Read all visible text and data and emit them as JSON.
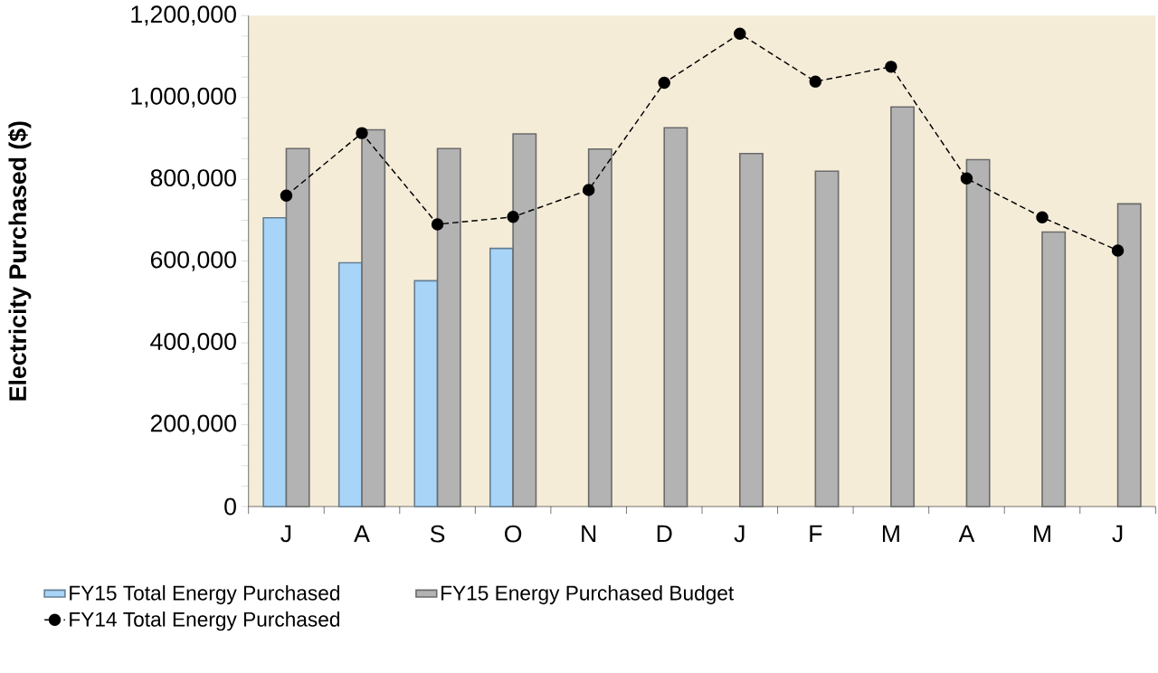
{
  "chart_data": {
    "type": "bar",
    "ylabel": "Electricity Purchased ($)",
    "categories": [
      "J",
      "A",
      "S",
      "O",
      "N",
      "D",
      "J",
      "F",
      "M",
      "A",
      "M",
      "J"
    ],
    "series": [
      {
        "name": "FY15 Total Energy Purchased",
        "color": "#a8d4f7",
        "values": [
          706000,
          596000,
          552000,
          631000,
          null,
          null,
          null,
          null,
          null,
          null,
          null,
          null
        ]
      },
      {
        "name": "FY15 Energy Purchased Budget",
        "color": "#b3b3b3",
        "values": [
          875000,
          921000,
          875000,
          911000,
          874000,
          926000,
          863000,
          820000,
          977000,
          848000,
          671000,
          740000
        ]
      },
      {
        "name": "FY14 Total Energy Purchased",
        "type": "line",
        "color": "#000000",
        "marker": "circle",
        "line_style": "dashed",
        "values": [
          760000,
          913000,
          690000,
          708000,
          774000,
          1036000,
          1156000,
          1039000,
          1075000,
          802000,
          707000,
          626000
        ]
      }
    ],
    "ylim": [
      0,
      1200000
    ],
    "yticks": [
      0,
      {
        "value": 200000,
        "label": "200,000"
      },
      {
        "value": 400000,
        "label": "400,000"
      },
      {
        "value": 600000,
        "label": "600,000"
      },
      {
        "value": 800000,
        "label": "800,000"
      },
      {
        "value": 1000000,
        "label": "1,000,000"
      },
      {
        "value": 1200000,
        "label": "1,200,000"
      }
    ],
    "grid": false,
    "legend": "bottom"
  }
}
